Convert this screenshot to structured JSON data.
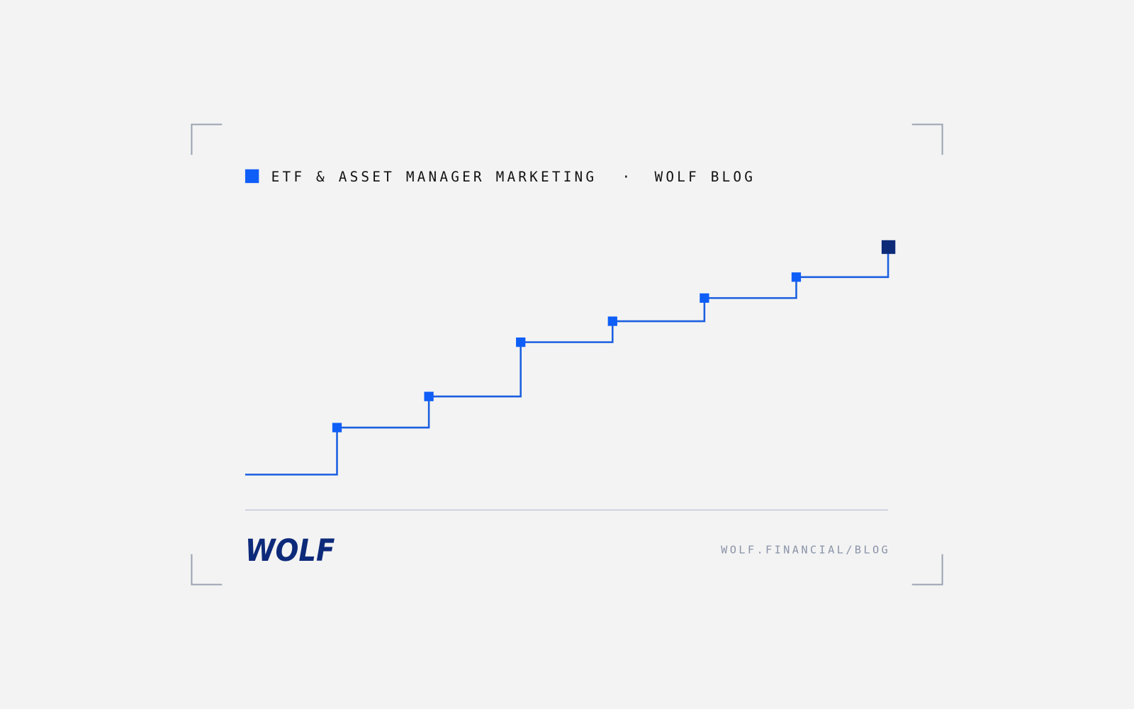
{
  "header": {
    "category": "ETF & ASSET MANAGER MARKETING",
    "separator": "·",
    "blog": "WOLF BLOG"
  },
  "footer": {
    "logo": "WOLF",
    "url": "WOLF.FINANCIAL/BLOG"
  }
}
